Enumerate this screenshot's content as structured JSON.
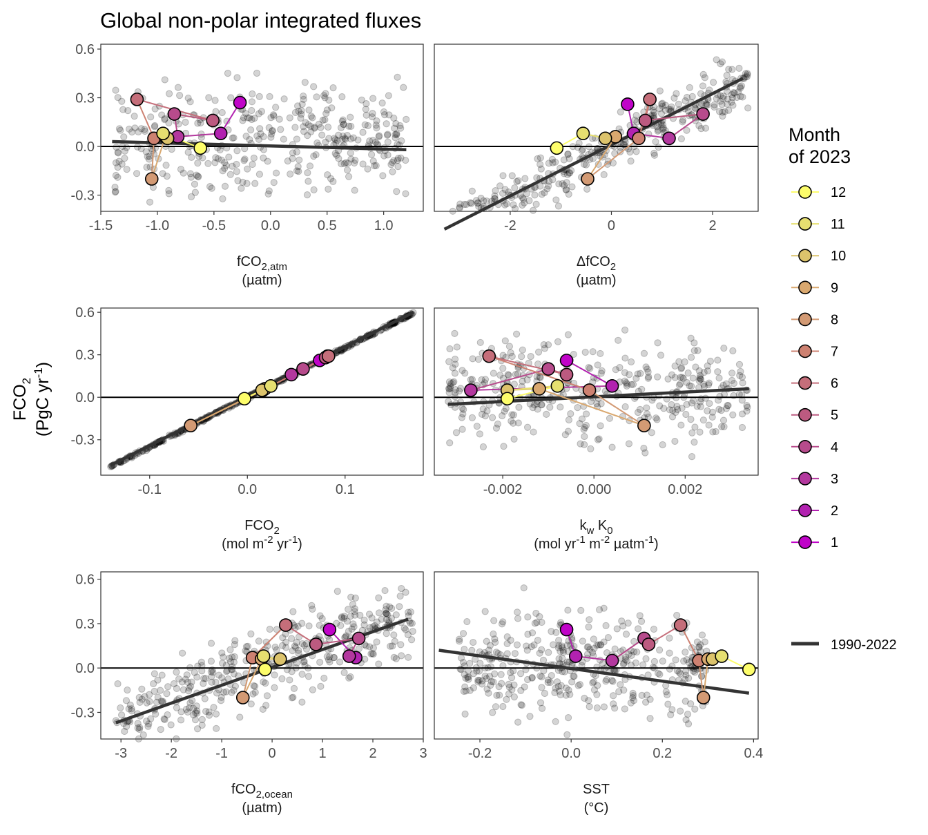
{
  "title": "Global non-polar integrated fluxes",
  "y_axis": {
    "line1": "FCO",
    "sub": "2",
    "line2": "(PgC yr",
    "sup": "-1",
    "line2_end": ")"
  },
  "legend": {
    "title_line1": "Month",
    "title_line2": "of 2023",
    "months": [
      "12",
      "11",
      "10",
      "9",
      "8",
      "7",
      "6",
      "5",
      "4",
      "3",
      "2",
      "1"
    ],
    "month_colors": {
      "1": "#c004c8",
      "2": "#b222b0",
      "3": "#b3389e",
      "4": "#b74b8c",
      "5": "#bc5a80",
      "6": "#c56e7a",
      "7": "#cd8171",
      "8": "#d39a74",
      "9": "#d9a86f",
      "10": "#dcc36c",
      "11": "#e6df70",
      "12": "#fdfd6b"
    },
    "line_label": "1990-2022",
    "line_color": "#333333"
  },
  "chart_data": [
    {
      "type": "scatter",
      "xlabel": {
        "main": "fCO",
        "sub": "2,atm",
        "unit": "(µatm)"
      },
      "ylabel": "FCO2 (PgC yr-1)",
      "xlim": [
        -1.5,
        1.35
      ],
      "ylim": [
        -0.4,
        0.63
      ],
      "xticks": [
        -1.5,
        -1.0,
        -0.5,
        0.0,
        0.5,
        1.0
      ],
      "xtick_labels": [
        "-1.5",
        "-1.0",
        "-0.5",
        "0.0",
        "0.5",
        "1.0"
      ],
      "yticks": [
        -0.3,
        0.0,
        0.3,
        0.6
      ],
      "ytick_labels": [
        "-0.3",
        "0.0",
        "0.3",
        "0.6"
      ],
      "background": {
        "x_range": [
          -1.38,
          1.2
        ],
        "y_center": 0.03,
        "y_spread": 0.18
      },
      "fit_line": [
        [
          -1.4,
          0.03
        ],
        [
          1.2,
          -0.02
        ]
      ],
      "months_2023": [
        [
          -0.27,
          0.27
        ],
        [
          -0.44,
          0.08
        ],
        [
          -0.82,
          0.06
        ],
        [
          -0.85,
          0.2
        ],
        [
          -0.51,
          0.16
        ],
        [
          -1.18,
          0.29
        ],
        [
          -1.03,
          0.05
        ],
        [
          -1.05,
          -0.2
        ],
        [
          -0.93,
          0.06
        ],
        [
          -0.91,
          0.05
        ],
        [
          -0.95,
          0.08
        ],
        [
          -0.62,
          -0.01
        ]
      ]
    },
    {
      "type": "scatter",
      "xlabel": {
        "main": "ΔfCO",
        "sub": "2",
        "unit": "(µatm)"
      },
      "xlim": [
        -3.5,
        2.9
      ],
      "ylim": [
        -0.4,
        0.63
      ],
      "xticks": [
        -2,
        0,
        2
      ],
      "xtick_labels": [
        "-2",
        "0",
        "2"
      ],
      "yticks": [
        -0.3,
        0.0,
        0.3,
        0.6
      ],
      "ytick_labels": [
        "-0.3",
        "0.0",
        "0.3",
        "0.6"
      ],
      "background": {
        "x_range": [
          -3.3,
          2.7
        ],
        "slope": 0.155,
        "intercept": 0.0,
        "noise": 0.08
      },
      "fit_line": [
        [
          -3.3,
          -0.51
        ],
        [
          2.6,
          0.42
        ]
      ],
      "months_2023": [
        [
          0.32,
          0.26
        ],
        [
          0.44,
          0.08
        ],
        [
          1.14,
          0.05
        ],
        [
          1.81,
          0.2
        ],
        [
          0.67,
          0.16
        ],
        [
          0.76,
          0.29
        ],
        [
          0.54,
          0.05
        ],
        [
          -0.47,
          -0.2
        ],
        [
          0.08,
          0.06
        ],
        [
          -0.12,
          0.05
        ],
        [
          -0.56,
          0.08
        ],
        [
          -1.08,
          -0.01
        ]
      ]
    },
    {
      "type": "scatter",
      "xlabel": {
        "main": "FCO",
        "sub": "2",
        "unit_parts": [
          "(mol m",
          "-2",
          " yr",
          "-1",
          ")"
        ]
      },
      "xlim": [
        -0.15,
        0.18
      ],
      "ylim": [
        -0.55,
        0.63
      ],
      "xticks": [
        -0.1,
        0.0,
        0.1
      ],
      "xtick_labels": [
        "-0.1",
        "0.0",
        "0.1"
      ],
      "yticks": [
        -0.3,
        0.0,
        0.3,
        0.6
      ],
      "ytick_labels": [
        "-0.3",
        "0.0",
        "0.3",
        "0.6"
      ],
      "background": {
        "x_range": [
          -0.14,
          0.17
        ],
        "slope": 3.5,
        "intercept": 0.0,
        "noise": 0.005
      },
      "fit_line": [
        [
          -0.14,
          -0.48
        ],
        [
          0.17,
          0.6
        ]
      ],
      "months_2023": [
        [
          0.074,
          0.26
        ],
        [
          0.082,
          0.29
        ],
        [
          0.045,
          0.16
        ],
        [
          0.057,
          0.2
        ],
        [
          0.08,
          0.28
        ],
        [
          0.083,
          0.29
        ],
        [
          0.016,
          0.05
        ],
        [
          -0.058,
          -0.2
        ],
        [
          0.018,
          0.06
        ],
        [
          0.015,
          0.05
        ],
        [
          0.024,
          0.08
        ],
        [
          -0.003,
          -0.01
        ]
      ]
    },
    {
      "type": "scatter",
      "xlabel": {
        "main": "k",
        "sub": "w",
        "main2": " K",
        "sub2": "0",
        "unit_parts": [
          "(mol yr",
          "-1",
          " m",
          "-2",
          " µatm",
          "-1",
          ")"
        ]
      },
      "xlim": [
        -0.0035,
        0.0036
      ],
      "ylim": [
        -0.55,
        0.63
      ],
      "xticks": [
        -0.002,
        0.0,
        0.002
      ],
      "xtick_labels": [
        "-0.002",
        "0.000",
        "0.002"
      ],
      "yticks": [
        -0.3,
        0.0,
        0.3,
        0.6
      ],
      "ytick_labels": [
        "-0.3",
        "0.0",
        "0.3",
        "0.6"
      ],
      "background": {
        "x_range": [
          -0.0032,
          0.0034
        ],
        "y_center": 0.05,
        "y_spread": 0.18
      },
      "fit_line": [
        [
          -0.0032,
          -0.05
        ],
        [
          0.0034,
          0.06
        ]
      ],
      "months_2023": [
        [
          -0.0006,
          0.26
        ],
        [
          0.0004,
          0.08
        ],
        [
          -0.0027,
          0.05
        ],
        [
          -0.001,
          0.2
        ],
        [
          -0.0006,
          0.16
        ],
        [
          -0.0023,
          0.29
        ],
        [
          -0.0001,
          0.05
        ],
        [
          0.0011,
          -0.2
        ],
        [
          -0.0012,
          0.06
        ],
        [
          -0.0019,
          0.05
        ],
        [
          -0.0008,
          0.08
        ],
        [
          -0.0019,
          -0.01
        ]
      ]
    },
    {
      "type": "scatter",
      "xlabel": {
        "main": "fCO",
        "sub": "2,ocean",
        "unit": "(µatm)"
      },
      "xlim": [
        -3.4,
        3.0
      ],
      "ylim": [
        -0.48,
        0.65
      ],
      "xticks": [
        -3,
        -2,
        -1,
        0,
        1,
        2,
        3
      ],
      "xtick_labels": [
        "-3",
        "-2",
        "-1",
        "0",
        "1",
        "2",
        "3"
      ],
      "yticks": [
        -0.3,
        0.0,
        0.3,
        0.6
      ],
      "ytick_labels": [
        "-0.3",
        "0.0",
        "0.3",
        "0.6"
      ],
      "background": {
        "x_range": [
          -3.1,
          2.8
        ],
        "slope": 0.12,
        "intercept": 0.03,
        "noise": 0.13
      },
      "fit_line": [
        [
          -3.1,
          -0.37
        ],
        [
          2.7,
          0.33
        ]
      ],
      "months_2023": [
        [
          1.14,
          0.26
        ],
        [
          1.66,
          0.07
        ],
        [
          1.53,
          0.08
        ],
        [
          1.72,
          0.2
        ],
        [
          0.87,
          0.16
        ],
        [
          0.27,
          0.29
        ],
        [
          -0.39,
          0.07
        ],
        [
          -0.58,
          -0.2
        ],
        [
          -0.21,
          0.06
        ],
        [
          0.16,
          0.06
        ],
        [
          -0.17,
          0.08
        ],
        [
          -0.14,
          -0.01
        ]
      ]
    },
    {
      "type": "scatter",
      "xlabel": {
        "main": "SST",
        "sub": "",
        "unit": "(°C)"
      },
      "xlim": [
        -0.3,
        0.41
      ],
      "ylim": [
        -0.48,
        0.65
      ],
      "xticks": [
        -0.2,
        0.0,
        0.2,
        0.4
      ],
      "xtick_labels": [
        "-0.2",
        "0.0",
        "0.2",
        "0.4"
      ],
      "yticks": [
        -0.3,
        0.0,
        0.3,
        0.6
      ],
      "ytick_labels": [
        "-0.3",
        "0.0",
        "0.3",
        "0.6"
      ],
      "background": {
        "x_range": [
          -0.25,
          0.3
        ],
        "y_center": 0.03,
        "y_spread": 0.18
      },
      "fit_line": [
        [
          -0.29,
          0.12
        ],
        [
          0.39,
          -0.17
        ]
      ],
      "months_2023": [
        [
          -0.01,
          0.26
        ],
        [
          0.01,
          0.08
        ],
        [
          0.09,
          0.05
        ],
        [
          0.16,
          0.2
        ],
        [
          0.17,
          0.16
        ],
        [
          0.24,
          0.29
        ],
        [
          0.28,
          0.05
        ],
        [
          0.29,
          -0.2
        ],
        [
          0.3,
          0.06
        ],
        [
          0.31,
          0.06
        ],
        [
          0.33,
          0.08
        ],
        [
          0.39,
          -0.01
        ]
      ]
    }
  ]
}
